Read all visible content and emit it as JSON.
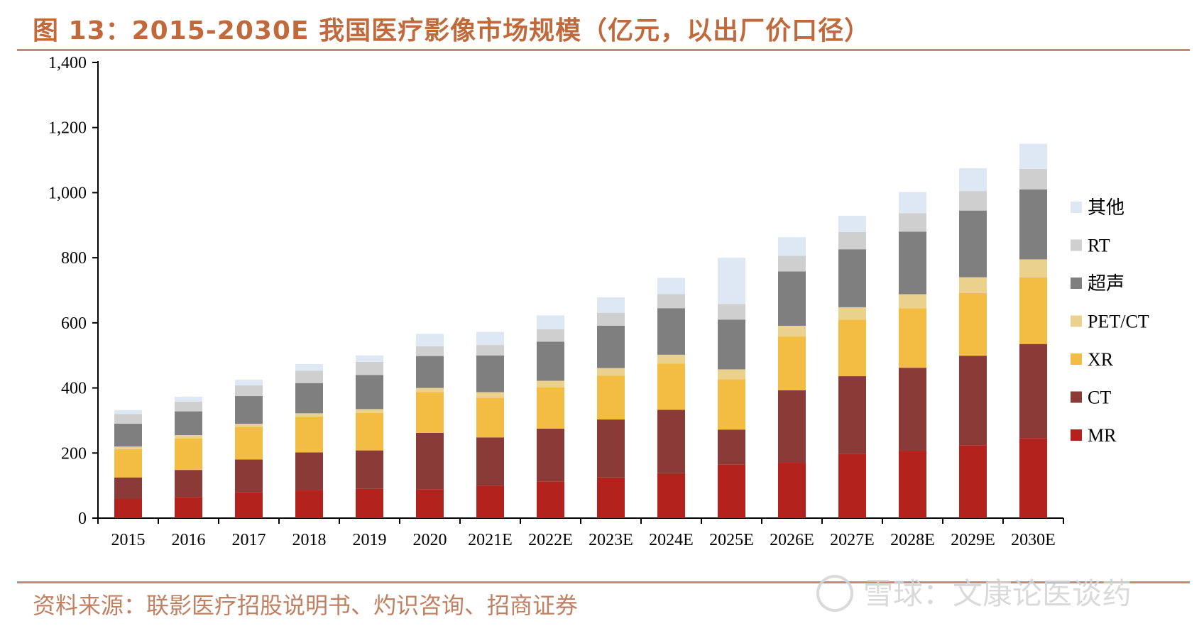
{
  "header": {
    "title": "图 13：2015-2030E 我国医疗影像市场规模（亿元，以出厂价口径）"
  },
  "footer": {
    "source": "资料来源：联影医疗招股说明书、灼识咨询、招商证券",
    "watermark": "雪球：文康论医谈药"
  },
  "chart_data": {
    "type": "bar",
    "stacked": true,
    "title": "图 13：2015-2030E 我国医疗影像市场规模（亿元，以出厂价口径）",
    "xlabel": "",
    "ylabel": "",
    "ylim": [
      0,
      1400
    ],
    "yticks": [
      0,
      200,
      400,
      600,
      800,
      1000,
      1200,
      1400
    ],
    "ytick_labels": [
      "0",
      "200",
      "400",
      "600",
      "800",
      "1,000",
      "1,200",
      "1,400"
    ],
    "grid": false,
    "legend_position": "right",
    "categories": [
      "2015",
      "2016",
      "2017",
      "2018",
      "2019",
      "2020",
      "2021E",
      "2022E",
      "2023E",
      "2024E",
      "2025E",
      "2026E",
      "2027E",
      "2028E",
      "2029E",
      "2030E"
    ],
    "series": [
      {
        "name": "MR",
        "color": "#b3221d",
        "values": [
          60,
          65,
          80,
          87,
          90,
          88,
          100,
          113,
          125,
          138,
          165,
          170,
          198,
          207,
          224,
          245
        ]
      },
      {
        "name": "CT",
        "color": "#8a3a37",
        "values": [
          65,
          83,
          100,
          115,
          118,
          174,
          148,
          162,
          178,
          195,
          107,
          223,
          238,
          255,
          275,
          290
        ]
      },
      {
        "name": "XR",
        "color": "#f3bd44",
        "values": [
          87,
          97,
          100,
          110,
          115,
          125,
          122,
          127,
          135,
          142,
          155,
          165,
          174,
          183,
          193,
          205
        ]
      },
      {
        "name": "PET/CT",
        "color": "#ead18e",
        "values": [
          8,
          10,
          10,
          10,
          12,
          13,
          17,
          20,
          23,
          27,
          30,
          33,
          38,
          43,
          48,
          55
        ]
      },
      {
        "name": "超声",
        "color": "#7f7f7f",
        "values": [
          70,
          73,
          85,
          93,
          105,
          98,
          113,
          120,
          130,
          143,
          153,
          167,
          178,
          192,
          205,
          215
        ]
      },
      {
        "name": "RT",
        "color": "#cfcfcf",
        "values": [
          30,
          30,
          33,
          38,
          40,
          30,
          32,
          38,
          40,
          43,
          48,
          48,
          53,
          57,
          60,
          63
        ]
      },
      {
        "name": "其他",
        "color": "#dde8f4",
        "values": [
          12,
          15,
          17,
          20,
          20,
          38,
          40,
          43,
          47,
          50,
          142,
          57,
          50,
          65,
          70,
          77
        ]
      }
    ]
  }
}
